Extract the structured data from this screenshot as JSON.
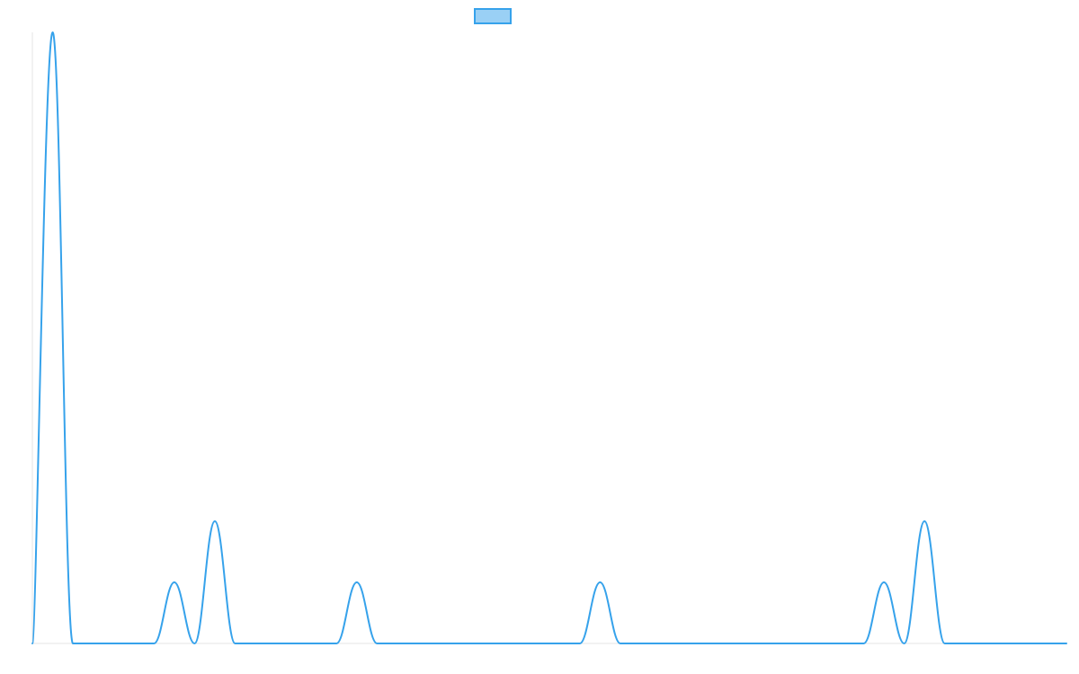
{
  "chart_data": {
    "type": "line",
    "title": "",
    "xlabel": "",
    "ylabel": "",
    "legend": {
      "position": "top-center",
      "entries": [
        {
          "label": "",
          "color": "#36a2eb",
          "fill": "#9ad0f5"
        }
      ]
    },
    "grid": false,
    "xlim": [
      0,
      51
    ],
    "ylim": [
      0,
      10
    ],
    "x": [
      0,
      1,
      2,
      3,
      4,
      5,
      6,
      7,
      8,
      9,
      10,
      11,
      12,
      13,
      14,
      15,
      16,
      17,
      18,
      19,
      20,
      21,
      22,
      23,
      24,
      25,
      26,
      27,
      28,
      29,
      30,
      31,
      32,
      33,
      34,
      35,
      36,
      37,
      38,
      39,
      40,
      41,
      42,
      43,
      44,
      45,
      46,
      47,
      48,
      49,
      50,
      51
    ],
    "series": [
      {
        "name": "",
        "color": "#36a2eb",
        "values": [
          0,
          10,
          0,
          0,
          0,
          0,
          0,
          1,
          0,
          2,
          0,
          0,
          0,
          0,
          0,
          0,
          1,
          0,
          0,
          0,
          0,
          0,
          0,
          0,
          0,
          0,
          0,
          0,
          1,
          0,
          0,
          0,
          0,
          0,
          0,
          0,
          0,
          0,
          0,
          0,
          0,
          0,
          1,
          0,
          2,
          0,
          0,
          0,
          0,
          0,
          0,
          0
        ]
      }
    ]
  }
}
